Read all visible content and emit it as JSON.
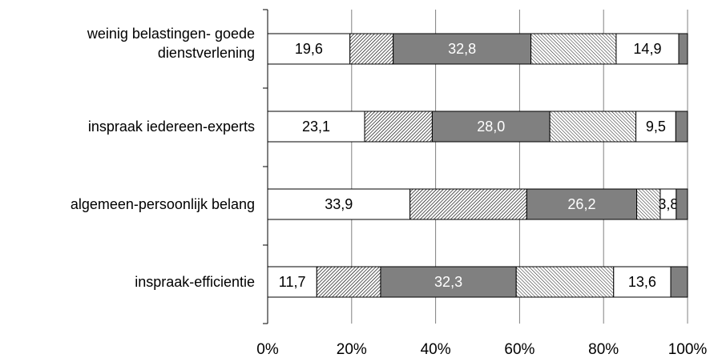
{
  "chart_data": {
    "type": "bar",
    "orientation": "horizontal",
    "stacked": true,
    "normalized_percent": true,
    "categories": [
      [
        "weinig belastingen- goede",
        "dienstverlening"
      ],
      [
        "inspraak iedereen-experts"
      ],
      [
        "algemeen-persoonlijk belang"
      ],
      [
        "inspraak-efficientie"
      ]
    ],
    "segments": [
      [
        19.6,
        10.3,
        32.8,
        20.3,
        14.9,
        2.1
      ],
      [
        23.1,
        16.1,
        28.0,
        20.5,
        9.5,
        2.8
      ],
      [
        33.9,
        27.8,
        26.2,
        5.6,
        3.8,
        2.7
      ],
      [
        11.7,
        15.2,
        32.3,
        23.2,
        13.6,
        4.0
      ]
    ],
    "segment_labels": [
      [
        "19,6",
        "",
        "32,8",
        "",
        "14,9",
        ""
      ],
      [
        "23,1",
        "",
        "28,0",
        "",
        "9,5",
        ""
      ],
      [
        "33,9",
        "",
        "26,2",
        "",
        "3,8",
        ""
      ],
      [
        "11,7",
        "",
        "32,3",
        "",
        "13,6",
        ""
      ]
    ],
    "segment_styles": [
      "white",
      "hatch-dense",
      "gray",
      "hatch-light",
      "white",
      "gray"
    ],
    "colors": {
      "gray": "#808080",
      "white": "#ffffff",
      "border": "#000000",
      "grid": "#808080",
      "label_light": "#ffffff",
      "label_dark": "#000000"
    },
    "x_ticks": [
      "0%",
      "20%",
      "40%",
      "60%",
      "80%",
      "100%"
    ],
    "xlim": [
      0,
      100
    ],
    "grid": "vertical",
    "legend": "none"
  }
}
